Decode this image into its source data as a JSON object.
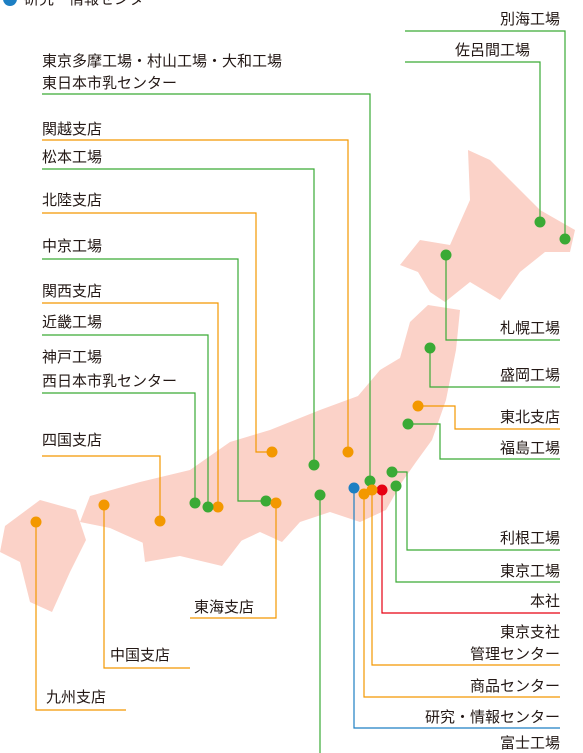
{
  "legend": {
    "label": "研究・情報センター"
  },
  "labels": [
    {
      "lines": [
        "東京多摩工場・村山工場・大和工場",
        "東日本市乳センター"
      ]
    },
    {
      "lines": [
        "関越支店"
      ]
    },
    {
      "lines": [
        "松本工場"
      ]
    },
    {
      "lines": [
        "北陸支店"
      ]
    },
    {
      "lines": [
        "中京工場"
      ]
    },
    {
      "lines": [
        "関西支店"
      ]
    },
    {
      "lines": [
        "近畿工場"
      ]
    },
    {
      "lines": [
        "神戸工場",
        "西日本市乳センター"
      ]
    },
    {
      "lines": [
        "四国支店"
      ]
    },
    {
      "lines": [
        "九州支店"
      ]
    },
    {
      "lines": [
        "中国支店"
      ]
    },
    {
      "lines": [
        "東海支店"
      ]
    },
    {
      "lines": [
        "別海工場"
      ]
    },
    {
      "lines": [
        "佐呂間工場"
      ]
    },
    {
      "lines": [
        "札幌工場"
      ]
    },
    {
      "lines": [
        "盛岡工場"
      ]
    },
    {
      "lines": [
        "東北支店"
      ]
    },
    {
      "lines": [
        "福島工場"
      ]
    },
    {
      "lines": [
        "利根工場"
      ]
    },
    {
      "lines": [
        "東京工場"
      ]
    },
    {
      "lines": [
        "本社"
      ]
    },
    {
      "lines": [
        "東京支社",
        "管理センター"
      ]
    },
    {
      "lines": [
        "商品センター"
      ]
    },
    {
      "lines": [
        "研究・情報センター"
      ]
    },
    {
      "lines": [
        "富士工場"
      ]
    }
  ]
}
